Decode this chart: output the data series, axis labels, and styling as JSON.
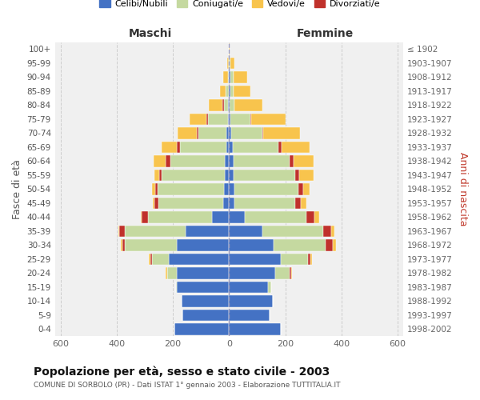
{
  "age_groups": [
    "0-4",
    "5-9",
    "10-14",
    "15-19",
    "20-24",
    "25-29",
    "30-34",
    "35-39",
    "40-44",
    "45-49",
    "50-54",
    "55-59",
    "60-64",
    "65-69",
    "70-74",
    "75-79",
    "80-84",
    "85-89",
    "90-94",
    "95-99",
    "100+"
  ],
  "birth_years": [
    "1998-2002",
    "1993-1997",
    "1988-1992",
    "1983-1987",
    "1978-1982",
    "1973-1977",
    "1968-1972",
    "1963-1967",
    "1958-1962",
    "1953-1957",
    "1948-1952",
    "1943-1947",
    "1938-1942",
    "1933-1937",
    "1928-1932",
    "1923-1927",
    "1918-1922",
    "1913-1917",
    "1908-1912",
    "1903-1907",
    "≤ 1902"
  ],
  "maschi": {
    "celibi": [
      195,
      165,
      170,
      185,
      185,
      215,
      185,
      155,
      60,
      22,
      18,
      15,
      15,
      10,
      9,
      5,
      3,
      2,
      0,
      0,
      0
    ],
    "coniugati": [
      0,
      0,
      0,
      5,
      35,
      60,
      185,
      215,
      230,
      230,
      235,
      225,
      195,
      165,
      100,
      70,
      15,
      10,
      5,
      2,
      0
    ],
    "vedovi": [
      0,
      0,
      0,
      0,
      5,
      5,
      5,
      5,
      5,
      5,
      10,
      15,
      45,
      55,
      70,
      60,
      50,
      20,
      15,
      5,
      0
    ],
    "divorziati": [
      0,
      0,
      0,
      0,
      0,
      5,
      10,
      20,
      20,
      15,
      10,
      10,
      15,
      10,
      5,
      5,
      5,
      0,
      0,
      0,
      0
    ]
  },
  "femmine": {
    "nubili": [
      185,
      145,
      155,
      140,
      165,
      185,
      160,
      120,
      55,
      20,
      18,
      15,
      15,
      12,
      8,
      5,
      3,
      5,
      5,
      0,
      0
    ],
    "coniugate": [
      0,
      0,
      0,
      10,
      50,
      95,
      185,
      215,
      220,
      215,
      230,
      220,
      200,
      165,
      110,
      70,
      15,
      10,
      10,
      5,
      0
    ],
    "vedove": [
      0,
      0,
      0,
      0,
      5,
      5,
      10,
      10,
      15,
      20,
      25,
      50,
      70,
      100,
      130,
      120,
      100,
      60,
      50,
      15,
      2
    ],
    "divorziate": [
      0,
      0,
      0,
      0,
      5,
      10,
      25,
      30,
      30,
      20,
      15,
      15,
      15,
      10,
      5,
      5,
      2,
      2,
      0,
      0,
      0
    ]
  },
  "colors": {
    "celibi": "#4472c4",
    "coniugati": "#c5d9a0",
    "vedovi": "#f8c44d",
    "divorziati": "#c0312b"
  },
  "legend_labels": [
    "Celibi/Nubili",
    "Coniugati/e",
    "Vedovi/e",
    "Divorziati/e"
  ],
  "title": "Popolazione per età, sesso e stato civile - 2003",
  "subtitle": "COMUNE DI SORBOLO (PR) - Dati ISTAT 1° gennaio 2003 - Elaborazione TUTTITALIA.IT",
  "ylabel_left": "Fasce di età",
  "ylabel_right": "Anni di nascita",
  "xlabel_maschi": "Maschi",
  "xlabel_femmine": "Femmine",
  "xlim": 620,
  "bg_color": "#ffffff",
  "plot_bg": "#f0f0f0"
}
